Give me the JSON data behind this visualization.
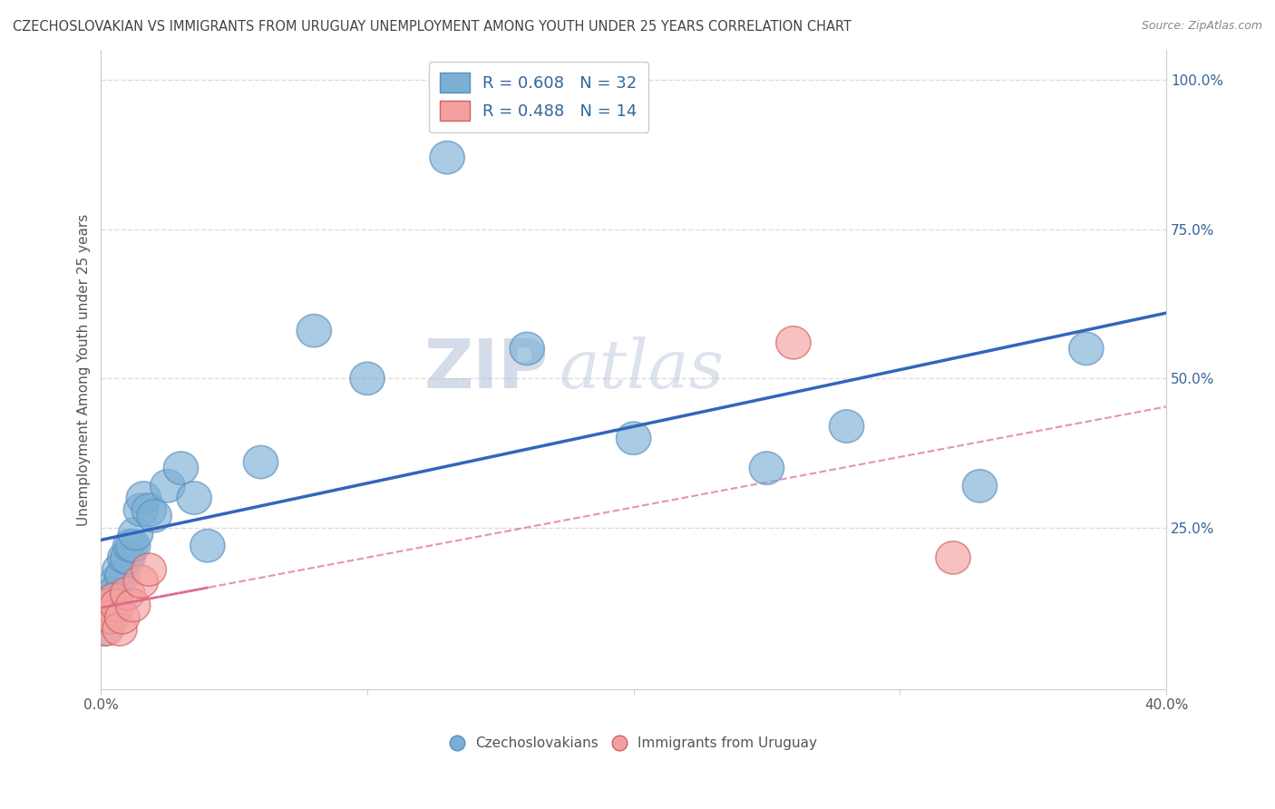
{
  "title": "CZECHOSLOVAKIAN VS IMMIGRANTS FROM URUGUAY UNEMPLOYMENT AMONG YOUTH UNDER 25 YEARS CORRELATION CHART",
  "source": "Source: ZipAtlas.com",
  "ylabel": "Unemployment Among Youth under 25 years",
  "watermark_zip": "ZIP",
  "watermark_atlas": "atlas",
  "legend1_R": "R = 0.608",
  "legend1_N": "N = 32",
  "legend2_R": "R = 0.488",
  "legend2_N": "N = 14",
  "legend_bottom1": "Czechoslovakians",
  "legend_bottom2": "Immigrants from Uruguay",
  "color_blue": "#7BAFD4",
  "color_blue_edge": "#5A8FBF",
  "color_pink": "#F4A0A0",
  "color_pink_edge": "#D06060",
  "line_blue": "#3366BB",
  "line_pink": "#DD6688",
  "xlim": [
    0.0,
    0.4
  ],
  "ylim": [
    -0.02,
    1.05
  ],
  "xticks": [
    0.0,
    0.1,
    0.2,
    0.3,
    0.4
  ],
  "yticks": [
    0.25,
    0.5,
    0.75,
    1.0
  ],
  "blue_x": [
    0.001,
    0.002,
    0.003,
    0.004,
    0.004,
    0.005,
    0.006,
    0.007,
    0.008,
    0.009,
    0.01,
    0.011,
    0.012,
    0.013,
    0.015,
    0.016,
    0.018,
    0.02,
    0.025,
    0.03,
    0.035,
    0.04,
    0.06,
    0.08,
    0.1,
    0.13,
    0.16,
    0.2,
    0.25,
    0.28,
    0.33,
    0.37
  ],
  "blue_y": [
    0.08,
    0.1,
    0.1,
    0.12,
    0.14,
    0.14,
    0.16,
    0.18,
    0.17,
    0.2,
    0.2,
    0.22,
    0.22,
    0.24,
    0.28,
    0.3,
    0.28,
    0.27,
    0.32,
    0.35,
    0.3,
    0.22,
    0.36,
    0.58,
    0.5,
    0.87,
    0.55,
    0.4,
    0.35,
    0.42,
    0.32,
    0.55
  ],
  "pink_x": [
    0.001,
    0.002,
    0.003,
    0.004,
    0.005,
    0.006,
    0.007,
    0.008,
    0.01,
    0.012,
    0.015,
    0.018,
    0.26,
    0.32
  ],
  "pink_y": [
    0.1,
    0.08,
    0.12,
    0.1,
    0.13,
    0.12,
    0.08,
    0.1,
    0.14,
    0.12,
    0.16,
    0.18,
    0.56,
    0.2
  ],
  "bg_color": "#FFFFFF",
  "grid_color": "#DDDDDD",
  "tick_color_blue": "#336699",
  "tick_color_dark": "#555555"
}
